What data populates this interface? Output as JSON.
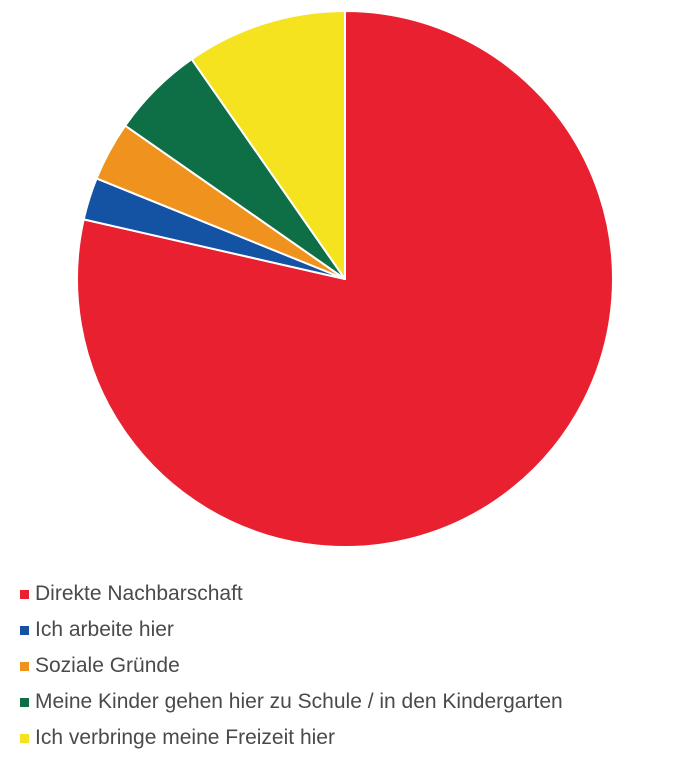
{
  "chart_data": {
    "type": "pie",
    "title": "",
    "categories": [
      "Direkte Nachbarschaft",
      "Ich arbeite hier",
      "Soziale Gründe",
      "Meine Kinder gehen hier zu Schule / in den Kindergarten",
      "Ich verbringe meine Freizeit hier"
    ],
    "values": [
      77,
      2.5,
      3.5,
      5.5,
      9.5
    ],
    "colors": [
      "#e8202f",
      "#1452a3",
      "#f0921e",
      "#0e6e46",
      "#f4e31e"
    ],
    "start_angle": "12 o'clock",
    "direction": "clockwise",
    "legend_position": "bottom-left"
  }
}
